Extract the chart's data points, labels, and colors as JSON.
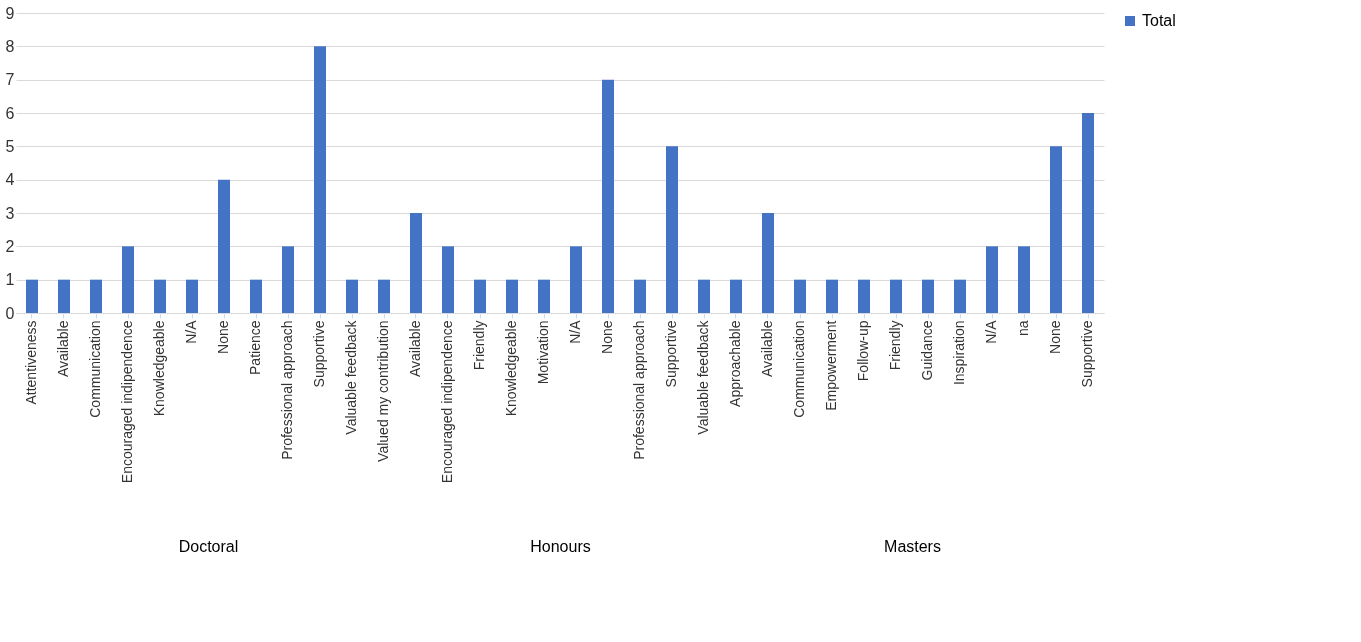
{
  "chart_data": [
    {
      "type": "bar",
      "xlabel": "Doctoral",
      "categories": [
        "Attentiveness",
        "Available",
        "Communication",
        "Encouraged indipendence",
        "Knowledgeable",
        "N/A",
        "None",
        "Patience",
        "Professional approach",
        "Supportive",
        "Valuable feedback",
        "Valued my contribution"
      ],
      "series": [
        {
          "color": "#4472c4",
          "values": [
            1,
            1,
            1,
            2,
            1,
            1,
            4,
            1,
            2,
            8,
            1,
            1
          ]
        }
      ],
      "ylim": [
        0,
        9
      ],
      "yticks": [
        0,
        1,
        2,
        3,
        4,
        5,
        6,
        7,
        8,
        9
      ],
      "grid": "y",
      "legend": false
    },
    {
      "type": "bar",
      "xlabel": "Honours",
      "categories": [
        "Available",
        "Encouraged indipendence",
        "Friendly",
        "Knowledgeable",
        "Motivation",
        "N/A",
        "None",
        "Professional approach",
        "Supportive",
        "Valuable feedback"
      ],
      "series": [
        {
          "color": "#4472c4",
          "values": [
            3,
            2,
            1,
            1,
            1,
            2,
            7,
            1,
            5,
            1
          ]
        }
      ],
      "ylim": [
        0,
        9
      ],
      "yticks": [
        0,
        1,
        2,
        3,
        4,
        5,
        6,
        7,
        8,
        9
      ],
      "grid": "y",
      "legend": false,
      "tick_labels": "x"
    },
    {
      "type": "bar",
      "xlabel": "Masters",
      "categories": [
        "Approachable",
        "Available",
        "Communication",
        "Empowerment",
        "Follow-up",
        "Friendly",
        "Guidance",
        "Inspiration",
        "N/A",
        "na",
        "None",
        "Supportive"
      ],
      "series": [
        {
          "name": "Total",
          "color": "#4472c4",
          "values": [
            1,
            3,
            1,
            1,
            1,
            1,
            1,
            1,
            2,
            2,
            5,
            6
          ]
        }
      ],
      "ylim": [
        0,
        9
      ],
      "yticks": [
        0,
        1,
        2,
        3,
        4,
        5,
        6,
        7,
        8,
        9
      ],
      "grid": "y",
      "legend": "right",
      "tick_labels": "x"
    }
  ]
}
